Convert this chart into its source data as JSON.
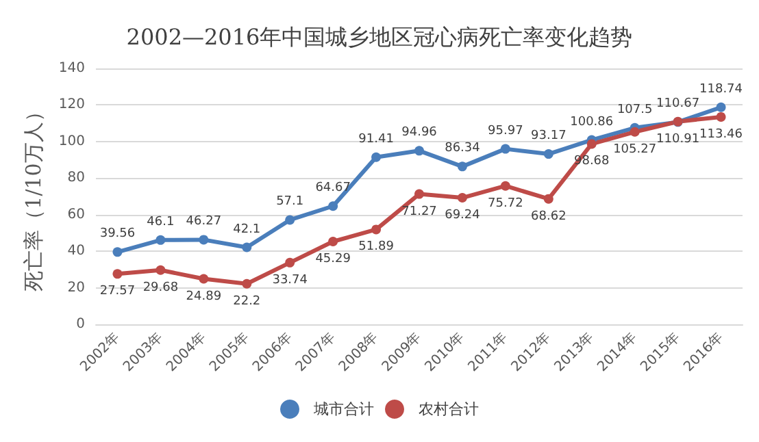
{
  "chart_data": {
    "type": "line",
    "title": "2002—2016年中国城乡地区冠心病死亡率变化趋势",
    "ylabel": "死亡率（1/10万人）",
    "categories": [
      "2002年",
      "2003年",
      "2004年",
      "2005年",
      "2006年",
      "2007年",
      "2008年",
      "2009年",
      "2010年",
      "2011年",
      "2012年",
      "2013年",
      "2014年",
      "2015年",
      "2016年"
    ],
    "series": [
      {
        "name": "城市合计",
        "color": "#4a7ebb",
        "values": [
          39.56,
          46.1,
          46.27,
          42.1,
          57.1,
          64.67,
          91.41,
          94.96,
          86.34,
          95.97,
          93.17,
          100.86,
          107.5,
          110.67,
          118.74
        ]
      },
      {
        "name": "农村合计",
        "color": "#be4b48",
        "values": [
          27.57,
          29.68,
          24.89,
          22.2,
          33.74,
          45.29,
          51.89,
          71.27,
          69.24,
          75.72,
          68.62,
          98.68,
          105.27,
          110.91,
          113.46
        ]
      }
    ],
    "ylim": [
      0,
      140
    ],
    "yticks": [
      0,
      20,
      40,
      60,
      80,
      100,
      120,
      140
    ],
    "grid": "y",
    "legend": "bottom",
    "marker": "circle",
    "line_style": "solid",
    "data_labels": true
  }
}
